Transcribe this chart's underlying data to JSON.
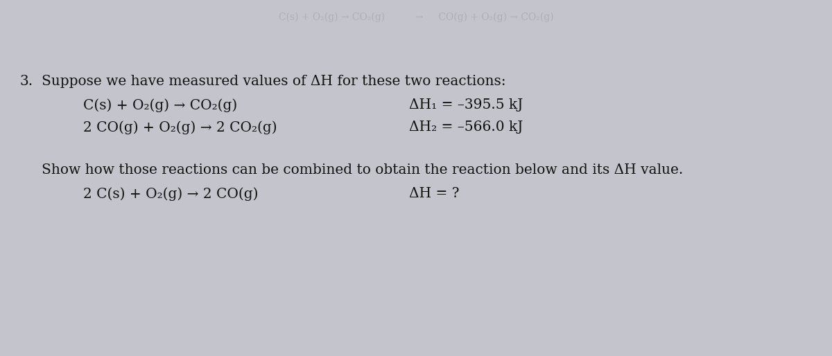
{
  "background_color": "#c4c5cc",
  "number": "3.",
  "intro_text": "Suppose we have measured values of ΔH for these two reactions:",
  "reaction1_left": "C(s) + O₂(g) → CO₂(g)",
  "reaction1_right": "ΔH₁ = –395.5 kJ",
  "reaction2_left": "2 CO(g) + O₂(g) → 2 CO₂(g)",
  "reaction2_right": "ΔH₂ = –566.0 kJ",
  "show_text": "Show how those reactions can be combined to obtain the reaction below and its ΔH value.",
  "reaction3_left": "2 C(s) + O₂(g) → 2 CO(g)",
  "reaction3_right": "ΔH = ?",
  "faded_line": "C(s) + O₂(g) → CO₂(g)          →     CO(g) + O₂(g) → CO₂(g)",
  "font_size": 14.5,
  "font_size_faded": 10,
  "text_color": "#111111",
  "faded_color": "#9a9aaa"
}
